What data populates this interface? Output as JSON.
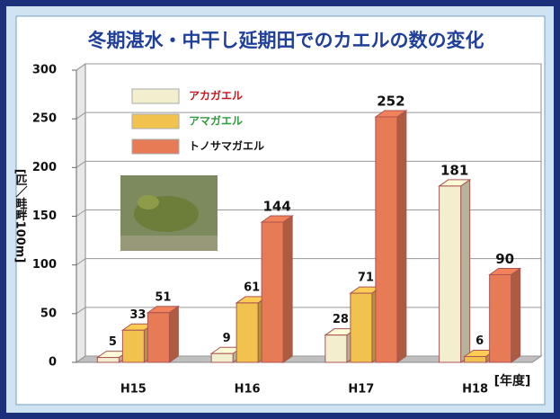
{
  "chart_data": {
    "type": "bar3d",
    "title": "冬期湛水・中干し延期田でのカエルの数の変化",
    "y_label": "[匹／畦畔100m]",
    "x_label": "[年度]",
    "categories": [
      "H15",
      "H16",
      "H17",
      "H18"
    ],
    "series": [
      {
        "name": "アカガエル",
        "color": "#f2efcf",
        "label_color": "#c8141e",
        "values": [
          5,
          9,
          28,
          181
        ]
      },
      {
        "name": "アマガエル",
        "color": "#f1c24e",
        "label_color": "#2e9a3a",
        "values": [
          33,
          61,
          71,
          6
        ]
      },
      {
        "name": "トノサマガエル",
        "color": "#e77b55",
        "label_color": "#111111",
        "values": [
          51,
          144,
          252,
          90
        ]
      }
    ],
    "ylim": [
      0,
      300
    ],
    "yticks": [
      0,
      50,
      100,
      150,
      200,
      250,
      300
    ],
    "grid": true,
    "legend": "upper left"
  }
}
